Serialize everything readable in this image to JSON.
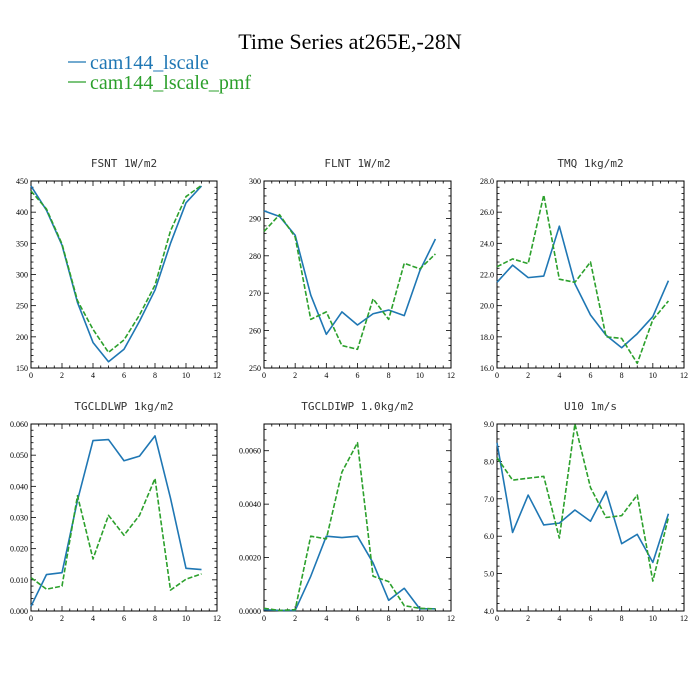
{
  "figure": {
    "title": "Time Series at265E,-28N",
    "legend": [
      {
        "label": "cam144_lscale",
        "color": "#1f77b4"
      },
      {
        "label": "cam144_lscale_pmf",
        "color": "#2ca02c"
      }
    ]
  },
  "chart_data": [
    {
      "type": "line",
      "title": "FSNT   1W/m2",
      "xlim": [
        0,
        12
      ],
      "xticks": [
        0,
        2,
        4,
        6,
        8,
        10,
        12
      ],
      "ylim": [
        150,
        450
      ],
      "yticks": [
        150,
        200,
        250,
        300,
        350,
        400,
        450
      ],
      "ytick_labels": [
        "150",
        "200",
        "250",
        "300",
        "350",
        "400",
        "450"
      ],
      "x": [
        0,
        1,
        2,
        3,
        4,
        5,
        6,
        7,
        8,
        9,
        10,
        11
      ],
      "series": [
        {
          "name": "cam144_lscale",
          "values": [
            442,
            403,
            347,
            255,
            191,
            160,
            180,
            225,
            275,
            350,
            415,
            442
          ]
        },
        {
          "name": "cam144_lscale_pmf",
          "values": [
            434,
            405,
            349,
            258,
            212,
            175,
            195,
            235,
            283,
            370,
            425,
            443
          ]
        }
      ]
    },
    {
      "type": "line",
      "title": "FLNT   1W/m2",
      "xlim": [
        0,
        12
      ],
      "xticks": [
        0,
        2,
        4,
        6,
        8,
        10,
        12
      ],
      "ylim": [
        250,
        300
      ],
      "yticks": [
        250,
        260,
        270,
        280,
        290,
        300
      ],
      "ytick_labels": [
        "250",
        "260",
        "270",
        "280",
        "290",
        "300"
      ],
      "x": [
        0,
        1,
        2,
        3,
        4,
        5,
        6,
        7,
        8,
        9,
        10,
        11
      ],
      "series": [
        {
          "name": "cam144_lscale",
          "values": [
            292,
            290.5,
            285.5,
            269.5,
            259,
            265,
            261.5,
            264.5,
            265.5,
            264,
            276,
            284.5
          ]
        },
        {
          "name": "cam144_lscale_pmf",
          "values": [
            286.5,
            291,
            285,
            263,
            265,
            256,
            255,
            268.5,
            263,
            278,
            276.5,
            280.5
          ]
        }
      ]
    },
    {
      "type": "line",
      "title": "TMQ   1kg/m2",
      "xlim": [
        0,
        12
      ],
      "xticks": [
        0,
        2,
        4,
        6,
        8,
        10,
        12
      ],
      "ylim": [
        16,
        28
      ],
      "yticks": [
        16,
        18,
        20,
        22,
        24,
        26,
        28
      ],
      "ytick_labels": [
        "16.0",
        "18.0",
        "20.0",
        "22.0",
        "24.0",
        "26.0",
        "28.0"
      ],
      "x": [
        0,
        1,
        2,
        3,
        4,
        5,
        6,
        7,
        8,
        9,
        10,
        11
      ],
      "series": [
        {
          "name": "cam144_lscale",
          "values": [
            21.5,
            22.6,
            21.8,
            21.9,
            25.1,
            21.4,
            19.4,
            18.1,
            17.3,
            18.2,
            19.3,
            21.6
          ]
        },
        {
          "name": "cam144_lscale_pmf",
          "values": [
            22.5,
            23,
            22.7,
            27.1,
            21.7,
            21.5,
            22.8,
            18,
            17.9,
            16.3,
            19.1,
            20.3
          ]
        }
      ]
    },
    {
      "type": "line",
      "title": "TGCLDLWP   1kg/m2",
      "xlim": [
        0,
        12
      ],
      "xticks": [
        0,
        2,
        4,
        6,
        8,
        10,
        12
      ],
      "ylim": [
        0,
        0.06
      ],
      "yticks": [
        0,
        0.01,
        0.02,
        0.03,
        0.04,
        0.05,
        0.06
      ],
      "ytick_labels": [
        "0.000",
        "0.010",
        "0.020",
        "0.030",
        "0.040",
        "0.050",
        "0.060"
      ],
      "x": [
        0,
        1,
        2,
        3,
        4,
        5,
        6,
        7,
        8,
        9,
        10,
        11
      ],
      "series": [
        {
          "name": "cam144_lscale",
          "values": [
            0.0015,
            0.0117,
            0.0123,
            0.0355,
            0.0547,
            0.055,
            0.0482,
            0.0497,
            0.0562,
            0.0362,
            0.0137,
            0.0133
          ]
        },
        {
          "name": "cam144_lscale_pmf",
          "values": [
            0.0107,
            0.007,
            0.008,
            0.037,
            0.0167,
            0.0307,
            0.0243,
            0.0307,
            0.0425,
            0.0067,
            0.0102,
            0.0119
          ]
        }
      ]
    },
    {
      "type": "line",
      "title": "TGCLDIWP   1.0kg/m2",
      "xlim": [
        0,
        12
      ],
      "xticks": [
        0,
        2,
        4,
        6,
        8,
        10,
        12
      ],
      "ylim": [
        0,
        0.007
      ],
      "yticks": [
        0,
        0.002,
        0.004,
        0.006
      ],
      "ytick_labels": [
        "0.0000",
        "0.0020",
        "0.0040",
        "0.0060"
      ],
      "x": [
        0,
        1,
        2,
        3,
        4,
        5,
        6,
        7,
        8,
        9,
        10,
        11
      ],
      "series": [
        {
          "name": "cam144_lscale",
          "values": [
            5e-05,
            2e-05,
            2e-05,
            0.0013,
            0.0028,
            0.00275,
            0.0028,
            0.0018,
            0.0004,
            0.00085,
            8e-05,
            8e-05
          ]
        },
        {
          "name": "cam144_lscale_pmf",
          "values": [
            0.0001,
            2e-05,
            5e-05,
            0.0028,
            0.0027,
            0.0052,
            0.0063,
            0.0013,
            0.0011,
            0.0002,
            0.0001,
            8e-05
          ]
        }
      ]
    },
    {
      "type": "line",
      "title": "U10   1m/s",
      "xlim": [
        0,
        12
      ],
      "xticks": [
        0,
        2,
        4,
        6,
        8,
        10,
        12
      ],
      "ylim": [
        4,
        9
      ],
      "yticks": [
        4,
        5,
        6,
        7,
        8,
        9
      ],
      "ytick_labels": [
        "4.0",
        "5.0",
        "6.0",
        "7.0",
        "8.0",
        "9.0"
      ],
      "x": [
        0,
        1,
        2,
        3,
        4,
        5,
        6,
        7,
        8,
        9,
        10,
        11
      ],
      "series": [
        {
          "name": "cam144_lscale",
          "values": [
            8.5,
            6.1,
            7.1,
            6.3,
            6.35,
            6.7,
            6.4,
            7.2,
            5.8,
            6.05,
            5.3,
            6.6
          ]
        },
        {
          "name": "cam144_lscale_pmf",
          "values": [
            8.1,
            7.5,
            7.55,
            7.6,
            5.95,
            9,
            7.3,
            6.5,
            6.55,
            7.1,
            4.8,
            6.5
          ]
        }
      ]
    }
  ]
}
